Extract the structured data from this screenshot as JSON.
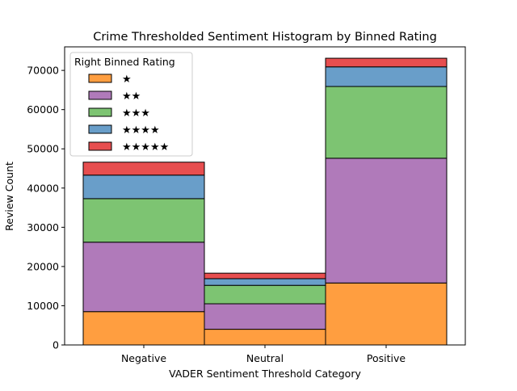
{
  "chart_data": {
    "type": "bar",
    "stacked": true,
    "title": "Crime Thresholded Sentiment Histogram by Binned Rating",
    "xlabel": "VADER Sentiment Threshold Category",
    "ylabel": "Review Count",
    "ylim": [
      0,
      76000
    ],
    "yticks": [
      0,
      10000,
      20000,
      30000,
      40000,
      50000,
      60000,
      70000
    ],
    "categories": [
      "Negative",
      "Neutral",
      "Positive"
    ],
    "legend": {
      "title": "Right Binned Rating",
      "placement": "top-left"
    },
    "series": [
      {
        "name": "★",
        "color": "#ff9e40",
        "values": [
          8500,
          4000,
          15800
        ]
      },
      {
        "name": "★★",
        "color": "#b07aba",
        "values": [
          17700,
          6500,
          31800
        ]
      },
      {
        "name": "★★★",
        "color": "#7dc472",
        "values": [
          11100,
          4700,
          18300
        ]
      },
      {
        "name": "★★★★",
        "color": "#699ec9",
        "values": [
          6000,
          1700,
          5000
        ]
      },
      {
        "name": "★★★★★",
        "color": "#e74e4f",
        "values": [
          3300,
          1400,
          2200
        ]
      }
    ],
    "grid": false
  }
}
